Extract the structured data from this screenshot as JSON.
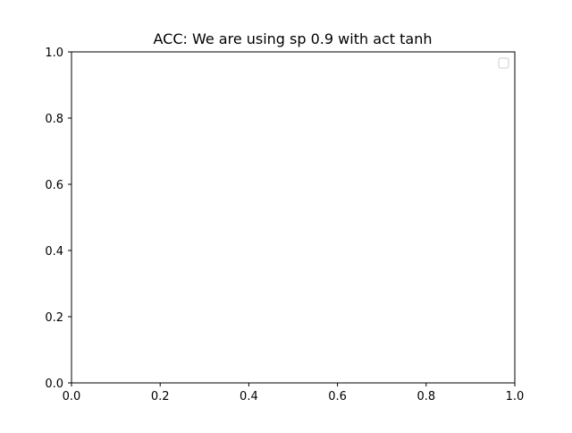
{
  "chart_data": {
    "type": "line",
    "title": "ACC: We are using sp 0.9 with act tanh",
    "xlabel": "",
    "ylabel": "",
    "xlim": [
      0.0,
      1.0
    ],
    "ylim": [
      0.0,
      1.0
    ],
    "x_ticks": [
      "0.0",
      "0.2",
      "0.4",
      "0.6",
      "0.8",
      "1.0"
    ],
    "y_ticks": [
      "0.0",
      "0.2",
      "0.4",
      "0.6",
      "0.8",
      "1.0"
    ],
    "series": [],
    "grid": false,
    "legend": {
      "placement": "top-right",
      "entries": []
    }
  },
  "colors": {
    "axes": "#000000",
    "background": "#ffffff",
    "legend_border": "#cccccc"
  }
}
